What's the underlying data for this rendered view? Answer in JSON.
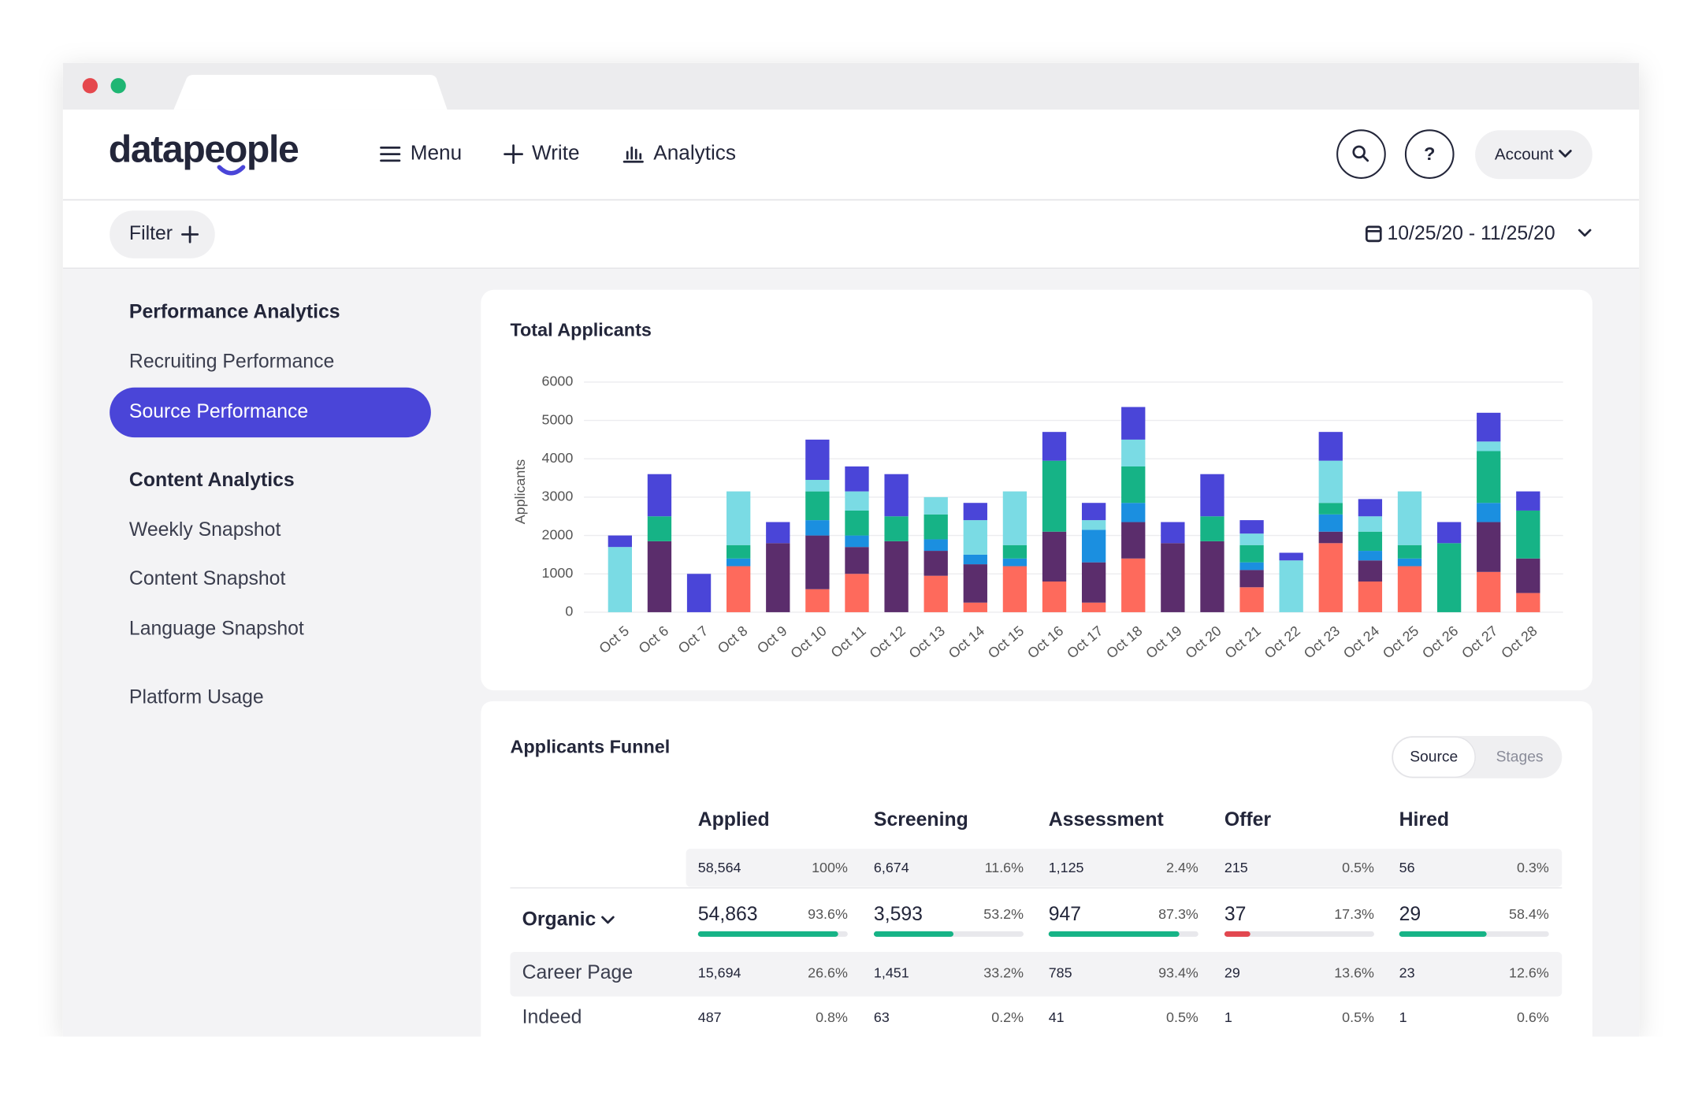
{
  "header": {
    "logo": "datapeople",
    "nav": [
      "Menu",
      "Write",
      "Analytics"
    ],
    "help": "?",
    "account": "Account"
  },
  "filter": {
    "label": "Filter",
    "date_range": "10/25/20 - 11/25/20"
  },
  "sidebar": {
    "performance_header": "Performance Analytics",
    "performance_items": [
      "Recruiting Performance",
      "Source Performance"
    ],
    "content_header": "Content Analytics",
    "content_items": [
      "Weekly Snapshot",
      "Content Snapshot",
      "Language Snapshot"
    ],
    "platform": "Platform Usage"
  },
  "chart_data": {
    "type": "stacked_bar",
    "title": "Total Applicants",
    "y_label": "Applicants",
    "categories": [
      "Oct 5",
      "Oct 6",
      "Oct 7",
      "Oct 8",
      "Oct 9",
      "Oct 10",
      "Oct 11",
      "Oct 12",
      "Oct 13",
      "Oct 14",
      "Oct 15",
      "Oct 16",
      "Oct 17",
      "Oct 18",
      "Oct 19",
      "Oct 20",
      "Oct 21",
      "Oct 22",
      "Oct 23",
      "Oct 24",
      "Oct 25",
      "Oct 26",
      "Oct 27",
      "Oct 28"
    ],
    "series": [
      {
        "color": "#fe6a5c",
        "values": [
          0,
          0,
          0,
          1200,
          0,
          600,
          1000,
          0,
          950,
          250,
          1200,
          800,
          250,
          1400,
          0,
          0,
          650,
          0,
          1800,
          800,
          1200,
          0,
          1050,
          500
        ]
      },
      {
        "color": "#5b2d6c",
        "values": [
          0,
          1850,
          0,
          0,
          1800,
          1400,
          700,
          1850,
          650,
          1000,
          0,
          1300,
          1050,
          950,
          1800,
          1850,
          450,
          0,
          300,
          550,
          0,
          0,
          1300,
          900
        ]
      },
      {
        "color": "#1b8fe0",
        "values": [
          0,
          0,
          0,
          200,
          0,
          400,
          300,
          0,
          300,
          250,
          200,
          0,
          850,
          500,
          0,
          0,
          200,
          0,
          450,
          250,
          200,
          0,
          500,
          0
        ]
      },
      {
        "color": "#16b386",
        "values": [
          0,
          650,
          0,
          350,
          0,
          750,
          650,
          650,
          650,
          0,
          350,
          1850,
          0,
          950,
          0,
          650,
          450,
          0,
          300,
          500,
          350,
          1800,
          1350,
          1250
        ]
      },
      {
        "color": "#7adbe4",
        "values": [
          1700,
          0,
          0,
          1400,
          0,
          300,
          500,
          0,
          450,
          900,
          1400,
          0,
          250,
          700,
          0,
          0,
          300,
          1350,
          1100,
          400,
          1400,
          0,
          250,
          0
        ]
      },
      {
        "color": "#4a45d8",
        "values": [
          300,
          1100,
          1000,
          0,
          550,
          1050,
          650,
          1100,
          0,
          450,
          0,
          750,
          450,
          850,
          550,
          1100,
          350,
          200,
          750,
          450,
          0,
          550,
          750,
          500
        ]
      }
    ],
    "ylim": [
      0,
      6000
    ],
    "yticks": [
      0,
      1000,
      2000,
      3000,
      4000,
      5000,
      6000
    ],
    "grid": true
  },
  "funnel": {
    "title": "Applicants Funnel",
    "toggle": [
      "Source",
      "Stages"
    ],
    "columns": [
      "Applied",
      "Screening",
      "Assessment",
      "Offer",
      "Hired"
    ],
    "total": [
      {
        "count": "58,564",
        "pct": "100%"
      },
      {
        "count": "6,674",
        "pct": "11.6%"
      },
      {
        "count": "1,125",
        "pct": "2.4%"
      },
      {
        "count": "215",
        "pct": "0.5%"
      },
      {
        "count": "56",
        "pct": "0.3%"
      }
    ],
    "group": {
      "label": "Organic",
      "cells": [
        {
          "count": "54,863",
          "pct": {
            "value": 93.6,
            "label": "93.6%"
          },
          "color": "#16b386"
        },
        {
          "count": "3,593",
          "pct": {
            "value": 53.2,
            "label": "53.2%"
          },
          "color": "#16b386"
        },
        {
          "count": "947",
          "pct": {
            "value": 87.3,
            "label": "87.3%"
          },
          "color": "#16b386"
        },
        {
          "count": "37",
          "pct": {
            "value": 17.3,
            "label": "17.3%"
          },
          "color": "#e2474f"
        },
        {
          "count": "29",
          "pct": {
            "value": 58.4,
            "label": "58.4%"
          },
          "color": "#16b386"
        }
      ]
    },
    "rows": [
      {
        "label": "Career Page",
        "cells": [
          {
            "count": "15,694",
            "pct": "26.6%"
          },
          {
            "count": "1,451",
            "pct": "33.2%"
          },
          {
            "count": "785",
            "pct": "93.4%"
          },
          {
            "count": "29",
            "pct": "13.6%"
          },
          {
            "count": "23",
            "pct": "12.6%"
          }
        ]
      },
      {
        "label": "Indeed",
        "cells": [
          {
            "count": "487",
            "pct": "0.8%"
          },
          {
            "count": "63",
            "pct": "0.2%"
          },
          {
            "count": "41",
            "pct": "0.5%"
          },
          {
            "count": "1",
            "pct": "0.5%"
          },
          {
            "count": "1",
            "pct": "0.6%"
          }
        ]
      }
    ]
  }
}
